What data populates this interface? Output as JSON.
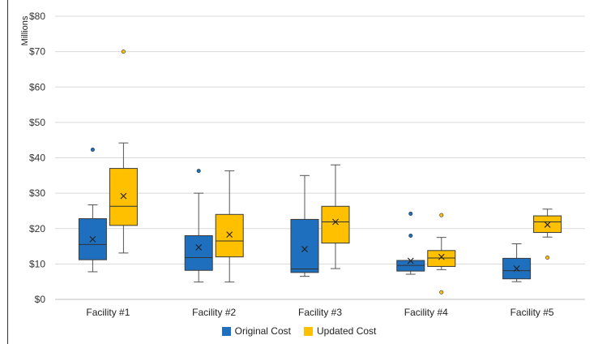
{
  "chart_data": {
    "type": "box",
    "ylabel": "Millions",
    "ylim": [
      0,
      80
    ],
    "yticks": [
      "$0",
      "$10",
      "$20",
      "$30",
      "$40",
      "$50",
      "$60",
      "$70",
      "$80"
    ],
    "ytick_values": [
      0,
      10,
      20,
      30,
      40,
      50,
      60,
      70,
      80
    ],
    "grid": true,
    "legend_position": "bottom",
    "categories": [
      "Facility #1",
      "Facility #2",
      "Facility #3",
      "Facility #4",
      "Facility #5"
    ],
    "series": [
      {
        "name": "Original Cost",
        "color": "#1f6fbf",
        "boxes": [
          {
            "min": 7.8,
            "q1": 11.2,
            "median": 15.5,
            "q3": 22.8,
            "max": 26.7,
            "mean": 17.0,
            "outliers": [
              42.3
            ]
          },
          {
            "min": 4.9,
            "q1": 8.2,
            "median": 11.8,
            "q3": 18.0,
            "max": 30.0,
            "mean": 14.7,
            "outliers": [
              36.3
            ]
          },
          {
            "min": 6.5,
            "q1": 7.6,
            "median": 8.6,
            "q3": 22.6,
            "max": 35.0,
            "mean": 14.2,
            "outliers": []
          },
          {
            "min": 7.1,
            "q1": 8.0,
            "median": 9.6,
            "q3": 11.0,
            "max": 11.0,
            "mean": 10.9,
            "outliers": [
              18.0,
              24.2
            ]
          },
          {
            "min": 5.0,
            "q1": 5.8,
            "median": 8.1,
            "q3": 11.6,
            "max": 15.7,
            "mean": 8.7,
            "outliers": []
          }
        ]
      },
      {
        "name": "Updated Cost",
        "color": "#ffc000",
        "boxes": [
          {
            "min": 13.1,
            "q1": 20.9,
            "median": 26.3,
            "q3": 37.0,
            "max": 44.2,
            "mean": 29.2,
            "outliers": [
              70.0
            ]
          },
          {
            "min": 4.9,
            "q1": 12.0,
            "median": 16.5,
            "q3": 24.0,
            "max": 36.3,
            "mean": 18.3,
            "outliers": []
          },
          {
            "min": 8.7,
            "q1": 15.9,
            "median": 21.9,
            "q3": 26.3,
            "max": 38.0,
            "mean": 21.9,
            "outliers": []
          },
          {
            "min": 8.4,
            "q1": 9.3,
            "median": 11.7,
            "q3": 13.8,
            "max": 17.5,
            "mean": 12.0,
            "outliers": [
              2.0,
              23.8
            ]
          },
          {
            "min": 17.6,
            "q1": 18.9,
            "median": 21.9,
            "q3": 23.6,
            "max": 25.5,
            "mean": 21.1,
            "outliers": [
              11.8
            ]
          }
        ]
      }
    ]
  }
}
